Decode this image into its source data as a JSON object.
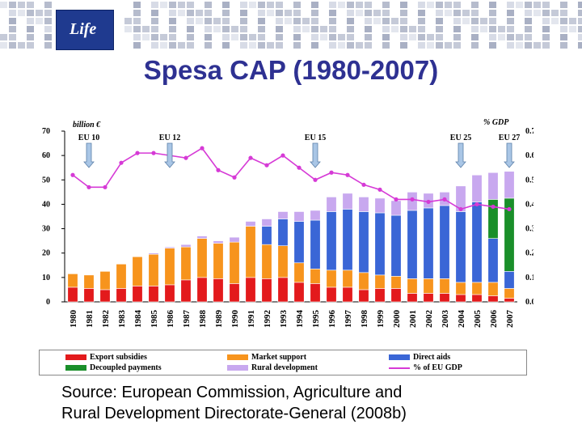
{
  "slide": {
    "title": "Spesa CAP (1980-2007)",
    "source_line1": "Source: European Commission, Agriculture and",
    "source_line2": "Rural Development Directorate-General (2008b)",
    "logo_text": "Life"
  },
  "colors": {
    "export": "#e31a1c",
    "market": "#f7941d",
    "direct": "#3a66d6",
    "decoupled": "#1a8f2a",
    "rural": "#c8a8ef",
    "gdp": "#d63ad6",
    "title": "#2e3192"
  },
  "chart_data": {
    "type": "bar",
    "stacked": true,
    "categories": [
      "1980",
      "1981",
      "1982",
      "1983",
      "1984",
      "1985",
      "1986",
      "1987",
      "1988",
      "1989",
      "1990",
      "1991",
      "1992",
      "1993",
      "1994",
      "1995",
      "1996",
      "1997",
      "1998",
      "1999",
      "2000",
      "2001",
      "2002",
      "2003",
      "2004",
      "2005",
      "2006",
      "2007"
    ],
    "ylabel_left": "billion €",
    "ylabel_right": "% GDP",
    "ylim": [
      0,
      70
    ],
    "yticks_left": [
      "0",
      "10",
      "20",
      "30",
      "40",
      "50",
      "60",
      "70"
    ],
    "ylim_right": [
      0,
      0.7
    ],
    "yticks_right": [
      "0.0%",
      "0.1%",
      "0.2%",
      "0.3%",
      "0.4%",
      "0.5%",
      "0.6%",
      "0.7%"
    ],
    "series": [
      {
        "name": "Export subsidies",
        "key": "export",
        "values": [
          6,
          5.5,
          5,
          5.5,
          6.5,
          6.5,
          7,
          9,
          10,
          9.5,
          7.5,
          10,
          9.5,
          10,
          8,
          7.5,
          6,
          6,
          5,
          5.5,
          5.5,
          3.5,
          3.5,
          3.5,
          3,
          3,
          2.5,
          1.5
        ]
      },
      {
        "name": "Market support",
        "key": "market",
        "values": [
          5.5,
          5.5,
          7.5,
          10,
          12,
          13,
          15,
          13.5,
          16,
          14.5,
          17,
          21,
          14,
          13,
          8,
          6,
          7,
          7,
          7,
          5.5,
          5,
          6,
          6,
          6,
          5,
          5,
          5.5,
          4
        ]
      },
      {
        "name": "Direct aids",
        "key": "direct",
        "values": [
          0,
          0,
          0,
          0,
          0,
          0,
          0,
          0,
          0,
          0,
          0,
          0,
          7.5,
          11,
          17,
          20,
          24,
          25,
          25,
          25.5,
          25,
          28,
          29,
          30,
          29,
          33,
          18,
          7
        ]
      },
      {
        "name": "Decoupled payments",
        "key": "decoupled",
        "values": [
          0,
          0,
          0,
          0,
          0,
          0,
          0,
          0,
          0,
          0,
          0,
          0,
          0,
          0,
          0,
          0,
          0,
          0,
          0,
          0,
          0,
          0,
          0,
          0,
          0,
          0,
          16,
          30
        ]
      },
      {
        "name": "Rural development",
        "key": "rural",
        "values": [
          0,
          0,
          0,
          0,
          0,
          0.5,
          0.5,
          1,
          1,
          1,
          2,
          2,
          3,
          3,
          4,
          4,
          6,
          6.5,
          6,
          6,
          6,
          7.5,
          6,
          5.5,
          10.5,
          11,
          11,
          11
        ]
      }
    ],
    "line": {
      "name": "% of EU GDP",
      "axis": "right",
      "values": [
        0.52,
        0.47,
        0.47,
        0.57,
        0.61,
        0.61,
        0.6,
        0.59,
        0.63,
        0.54,
        0.51,
        0.59,
        0.56,
        0.6,
        0.55,
        0.5,
        0.53,
        0.52,
        0.48,
        0.46,
        0.42,
        0.42,
        0.41,
        0.42,
        0.38,
        0.4,
        0.39,
        0.38
      ]
    },
    "annotations": [
      {
        "text": "EU 10",
        "category": "1981"
      },
      {
        "text": "EU 12",
        "category": "1986"
      },
      {
        "text": "EU 15",
        "category": "1995"
      },
      {
        "text": "EU 25",
        "category": "2004"
      },
      {
        "text": "EU 27",
        "category": "2007"
      }
    ]
  }
}
